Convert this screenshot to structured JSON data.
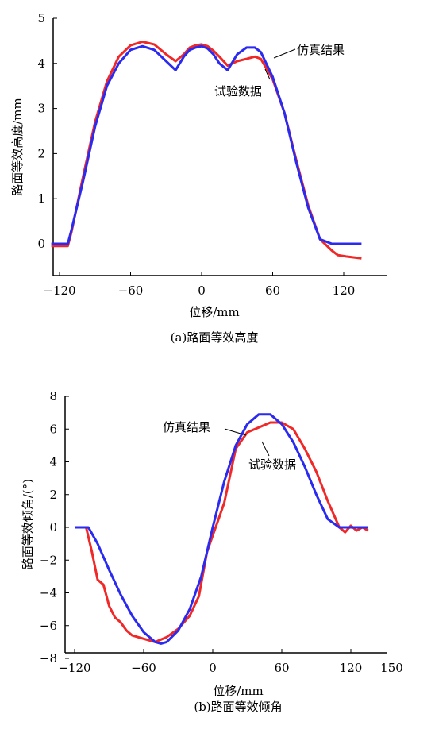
{
  "chart_data": [
    {
      "type": "line",
      "caption": "(a)路面等效高度",
      "xlabel": "位移/mm",
      "ylabel": "路面等效高度/mm",
      "xlim": [
        -128,
        145
      ],
      "ylim": [
        -0.65,
        5
      ],
      "xticks": [
        "-120",
        "-60",
        "0",
        "60",
        "120"
      ],
      "yticks": [
        "0",
        "1",
        "2",
        "3",
        "4",
        "5"
      ],
      "series": [
        {
          "name": "仿真结果",
          "color": "#2a2af0",
          "x": [
            -127,
            -113,
            -110,
            -100,
            -90,
            -80,
            -70,
            -60,
            -50,
            -40,
            -30,
            -22,
            -15,
            -10,
            -5,
            0,
            5,
            10,
            15,
            22,
            30,
            38,
            45,
            50,
            60,
            70,
            80,
            90,
            100,
            110,
            113,
            135
          ],
          "y": [
            0.0,
            0.0,
            0.3,
            1.4,
            2.6,
            3.5,
            4.0,
            4.3,
            4.38,
            4.3,
            4.05,
            3.85,
            4.15,
            4.3,
            4.35,
            4.38,
            4.33,
            4.2,
            4.0,
            3.85,
            4.2,
            4.35,
            4.35,
            4.25,
            3.7,
            2.9,
            1.8,
            0.8,
            0.1,
            0.0,
            0.0,
            0.0
          ]
        },
        {
          "name": "试验数据",
          "color": "#f02828",
          "x": [
            -127,
            -113,
            -110,
            -100,
            -90,
            -80,
            -70,
            -60,
            -50,
            -40,
            -30,
            -22,
            -15,
            -10,
            -5,
            0,
            5,
            10,
            15,
            22,
            30,
            38,
            45,
            50,
            60,
            70,
            80,
            90,
            100,
            110,
            115,
            122,
            135
          ],
          "y": [
            -0.05,
            -0.05,
            0.25,
            1.5,
            2.7,
            3.6,
            4.15,
            4.4,
            4.48,
            4.42,
            4.2,
            4.05,
            4.2,
            4.35,
            4.4,
            4.42,
            4.38,
            4.28,
            4.15,
            3.95,
            4.05,
            4.1,
            4.15,
            4.1,
            3.65,
            2.9,
            1.85,
            0.85,
            0.1,
            -0.15,
            -0.25,
            -0.28,
            -0.32
          ]
        }
      ],
      "annotations": [
        "仿真结果",
        "试验数据"
      ]
    },
    {
      "type": "line",
      "caption": "(b)路面等效倾角",
      "xlabel": "位移/mm",
      "ylabel": "路面等效倾角/(°)",
      "xlim": [
        -130,
        150
      ],
      "ylim": [
        -8,
        8
      ],
      "xticks": [
        "-120",
        "-60",
        "0",
        "60",
        "120",
        "150"
      ],
      "yticks": [
        "-8",
        "-6",
        "-4",
        "-2",
        "0",
        "2",
        "4",
        "6",
        "8"
      ],
      "series": [
        {
          "name": "仿真结果",
          "color": "#2a2af0",
          "x": [
            -120,
            -108,
            -100,
            -90,
            -80,
            -70,
            -60,
            -50,
            -45,
            -40,
            -30,
            -20,
            -10,
            0,
            10,
            20,
            30,
            40,
            50,
            60,
            70,
            80,
            90,
            100,
            110,
            120,
            135
          ],
          "y": [
            0,
            0,
            -1.0,
            -2.6,
            -4.1,
            -5.4,
            -6.4,
            -7.0,
            -7.1,
            -7.0,
            -6.3,
            -5.0,
            -3.0,
            0,
            2.8,
            5.0,
            6.3,
            6.9,
            6.9,
            6.3,
            5.2,
            3.7,
            2.0,
            0.5,
            0,
            0,
            0
          ]
        },
        {
          "name": "试验数据",
          "color": "#f02828",
          "x": [
            -120,
            -110,
            -105,
            -100,
            -95,
            -90,
            -85,
            -80,
            -75,
            -70,
            -60,
            -50,
            -40,
            -30,
            -20,
            -12,
            -5,
            0,
            5,
            10,
            20,
            30,
            40,
            50,
            60,
            70,
            80,
            90,
            100,
            110,
            115,
            120,
            125,
            130,
            135
          ],
          "y": [
            0,
            0,
            -1.5,
            -3.2,
            -3.5,
            -4.8,
            -5.5,
            -5.8,
            -6.3,
            -6.6,
            -6.8,
            -7.0,
            -6.7,
            -6.2,
            -5.4,
            -4.2,
            -1.5,
            -0.5,
            0.5,
            1.5,
            4.8,
            5.8,
            6.1,
            6.4,
            6.4,
            6.0,
            4.8,
            3.4,
            1.6,
            0,
            -0.3,
            0.1,
            -0.2,
            0,
            -0.2
          ]
        }
      ],
      "annotations": [
        "仿真结果",
        "试验数据"
      ]
    }
  ]
}
